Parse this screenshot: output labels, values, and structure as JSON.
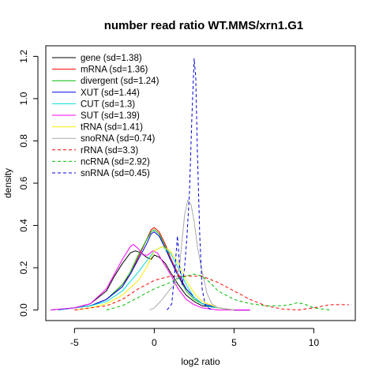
{
  "chart_data": {
    "type": "line",
    "title": "number read ratio WT.MMS/xrn1.G1",
    "xlabel": "log2 ratio",
    "ylabel": "density",
    "xlim": [
      -6.8,
      12.6
    ],
    "ylim": [
      -0.05,
      1.25
    ],
    "xticks": [
      -5,
      0,
      5,
      10
    ],
    "yticks": [
      0.0,
      0.2,
      0.4,
      0.6,
      0.8,
      1.0,
      1.2
    ],
    "grid": false,
    "legend_position": "top-left",
    "series": [
      {
        "name": "gene (sd=1.38)",
        "color": "#000000",
        "dash": "solid",
        "x": [
          -6.5,
          -5,
          -4,
          -3,
          -2.5,
          -2,
          -1.5,
          -1.2,
          -0.8,
          -0.5,
          -0.2,
          0,
          0.3,
          0.7,
          1,
          1.5,
          2,
          2.5,
          3,
          4,
          5,
          6
        ],
        "y": [
          0,
          0.01,
          0.03,
          0.09,
          0.16,
          0.22,
          0.27,
          0.28,
          0.27,
          0.25,
          0.24,
          0.26,
          0.25,
          0.22,
          0.18,
          0.12,
          0.07,
          0.04,
          0.02,
          0.01,
          0,
          0
        ]
      },
      {
        "name": "mRNA (sd=1.36)",
        "color": "#ff0000",
        "dash": "solid",
        "x": [
          -6,
          -5,
          -4,
          -3,
          -2,
          -1.5,
          -1,
          -0.5,
          -0.2,
          0,
          0.3,
          0.7,
          1,
          1.5,
          2,
          2.5,
          3,
          4,
          5,
          6
        ],
        "y": [
          0,
          0.01,
          0.02,
          0.05,
          0.12,
          0.17,
          0.25,
          0.33,
          0.38,
          0.39,
          0.37,
          0.31,
          0.25,
          0.17,
          0.1,
          0.06,
          0.03,
          0.01,
          0,
          0
        ]
      },
      {
        "name": "divergent (sd=1.24)",
        "color": "#00bb00",
        "dash": "solid",
        "x": [
          -6,
          -5,
          -4,
          -3,
          -2,
          -1.5,
          -1,
          -0.5,
          -0.2,
          0,
          0.3,
          0.7,
          1,
          1.5,
          2,
          2.5,
          3,
          4,
          5
        ],
        "y": [
          0,
          0.01,
          0.02,
          0.05,
          0.12,
          0.18,
          0.26,
          0.33,
          0.37,
          0.38,
          0.36,
          0.3,
          0.24,
          0.16,
          0.09,
          0.05,
          0.03,
          0.01,
          0
        ]
      },
      {
        "name": "XUT (sd=1.44)",
        "color": "#0000ff",
        "dash": "solid",
        "x": [
          -6,
          -5,
          -4,
          -3,
          -2,
          -1.5,
          -1,
          -0.5,
          -0.2,
          0,
          0.3,
          0.7,
          1,
          1.5,
          2,
          2.5,
          3,
          4,
          5,
          6
        ],
        "y": [
          0,
          0.01,
          0.02,
          0.05,
          0.11,
          0.17,
          0.24,
          0.31,
          0.36,
          0.37,
          0.35,
          0.29,
          0.24,
          0.16,
          0.1,
          0.06,
          0.03,
          0.01,
          0,
          0
        ]
      },
      {
        "name": "CUT (sd=1.3)",
        "color": "#00dddd",
        "dash": "solid",
        "x": [
          -6,
          -5,
          -4,
          -3,
          -2,
          -1,
          -0.5,
          0,
          0.5,
          1,
          1.5,
          2,
          2.5,
          3,
          3.5,
          4,
          5
        ],
        "y": [
          0,
          0.01,
          0.02,
          0.04,
          0.09,
          0.18,
          0.23,
          0.28,
          0.3,
          0.27,
          0.2,
          0.12,
          0.06,
          0.03,
          0.015,
          0.01,
          0
        ]
      },
      {
        "name": "SUT (sd=1.39)",
        "color": "#ff00ff",
        "dash": "solid",
        "x": [
          -6.5,
          -5,
          -4,
          -3,
          -2.5,
          -2,
          -1.5,
          -1.3,
          -1,
          -0.7,
          -0.4,
          -0.1,
          0.2,
          0.6,
          1,
          1.5,
          2,
          2.5,
          3,
          4,
          5,
          6
        ],
        "y": [
          0,
          0.01,
          0.03,
          0.1,
          0.17,
          0.24,
          0.3,
          0.31,
          0.29,
          0.26,
          0.26,
          0.28,
          0.27,
          0.22,
          0.17,
          0.1,
          0.05,
          0.025,
          0.01,
          0,
          0,
          0
        ]
      },
      {
        "name": "tRNA (sd=1.41)",
        "color": "#ffee00",
        "dash": "solid",
        "x": [
          -5,
          -4,
          -3,
          -2,
          -1,
          -0.5,
          0,
          0.5,
          1,
          1.5,
          2,
          2.5,
          3,
          4,
          5
        ],
        "y": [
          0,
          0.01,
          0.03,
          0.07,
          0.14,
          0.2,
          0.28,
          0.3,
          0.28,
          0.22,
          0.14,
          0.08,
          0.04,
          0.01,
          0
        ]
      },
      {
        "name": "snoRNA (sd=0.74)",
        "color": "#aaaaaa",
        "dash": "solid",
        "x": [
          -0.3,
          0,
          0.5,
          1,
          1.3,
          1.6,
          1.9,
          2.1,
          2.3,
          2.5,
          2.7,
          3,
          3.3,
          3.6,
          4,
          5
        ],
        "y": [
          0,
          0.01,
          0.05,
          0.1,
          0.12,
          0.22,
          0.45,
          0.52,
          0.5,
          0.42,
          0.3,
          0.18,
          0.08,
          0.03,
          0.01,
          0
        ]
      },
      {
        "name": "rRNA (sd=3.3)",
        "color": "#ff0000",
        "dash": "dashed",
        "x": [
          -5,
          -4,
          -3,
          -2,
          -1,
          0,
          1,
          2,
          3,
          4,
          5,
          6,
          7,
          8,
          9,
          10,
          11,
          12.2
        ],
        "y": [
          0,
          0.01,
          0.02,
          0.05,
          0.1,
          0.14,
          0.16,
          0.16,
          0.16,
          0.13,
          0.09,
          0.05,
          0.02,
          0.005,
          0,
          0.01,
          0.025,
          0.025
        ]
      },
      {
        "name": "ncRNA (sd=2.92)",
        "color": "#00bb00",
        "dash": "dashed",
        "x": [
          -3,
          -2,
          -1,
          0,
          1,
          1.5,
          2,
          2.5,
          3,
          3.5,
          4,
          5,
          6,
          7,
          8,
          8.5,
          9,
          9.5,
          10,
          11
        ],
        "y": [
          0,
          0.02,
          0.06,
          0.1,
          0.13,
          0.15,
          0.16,
          0.17,
          0.16,
          0.13,
          0.09,
          0.05,
          0.03,
          0.02,
          0.02,
          0.025,
          0.035,
          0.025,
          0.01,
          0
        ]
      },
      {
        "name": "snRNA (sd=0.45)",
        "color": "#0000dd",
        "dash": "dashed",
        "x": [
          0.8,
          1.1,
          1.3,
          1.45,
          1.6,
          1.75,
          1.9,
          2.05,
          2.2,
          2.35,
          2.5,
          2.6,
          2.7,
          2.85,
          3,
          3.2,
          3.6
        ],
        "y": [
          0,
          0.03,
          0.2,
          0.35,
          0.2,
          0.12,
          0.2,
          0.35,
          0.55,
          0.9,
          1.19,
          1.1,
          0.75,
          0.35,
          0.1,
          0.02,
          0
        ]
      }
    ]
  }
}
